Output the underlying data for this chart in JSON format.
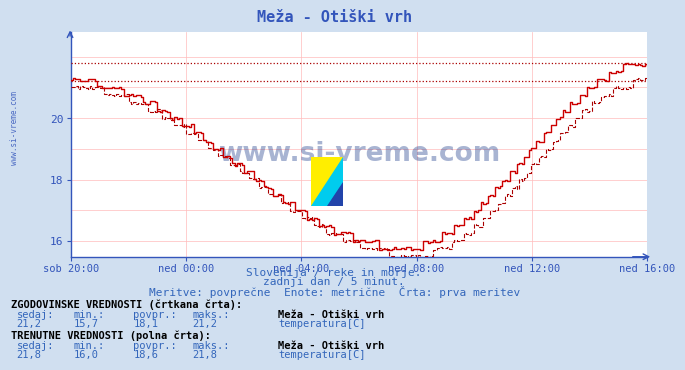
{
  "title": "Meža - Otiški vrh",
  "bg_color": "#d0dff0",
  "plot_bg": "#ffffff",
  "line_color": "#880000",
  "axis_color": "#3355bb",
  "text_color": "#3366bb",
  "yticks": [
    16,
    18,
    20
  ],
  "ymin": 15.5,
  "ymax": 22.8,
  "xtick_labels": [
    "sob 20:00",
    "ned 00:00",
    "ned 04:00",
    "ned 08:00",
    "ned 12:00",
    "ned 16:00"
  ],
  "subtitle1": "Slovenija / reke in morje.",
  "subtitle2": "zadnji dan / 5 minut.",
  "subtitle3": "Meritve: povprečne  Enote: metrične  Črta: prva meritev",
  "hist_label_header": "ZGODOVINSKE VREDNOSTI (črtkana črta):",
  "hist_sedaj": "21,2",
  "hist_min": "15,7",
  "hist_povpr": "18,1",
  "hist_maks": "21,2",
  "curr_label_header": "TRENUTNE VREDNOSTI (polna črta):",
  "curr_sedaj": "21,8",
  "curr_min": "16,0",
  "curr_povpr": "18,6",
  "curr_maks": "21,8",
  "station": "Meža - Otiški vrh",
  "param": "temperatura[C]",
  "hist_hline": 21.2,
  "curr_hline": 21.8,
  "n_display": 240,
  "watermark": "www.si-vreme.com",
  "side_watermark": "www.si-vreme.com"
}
